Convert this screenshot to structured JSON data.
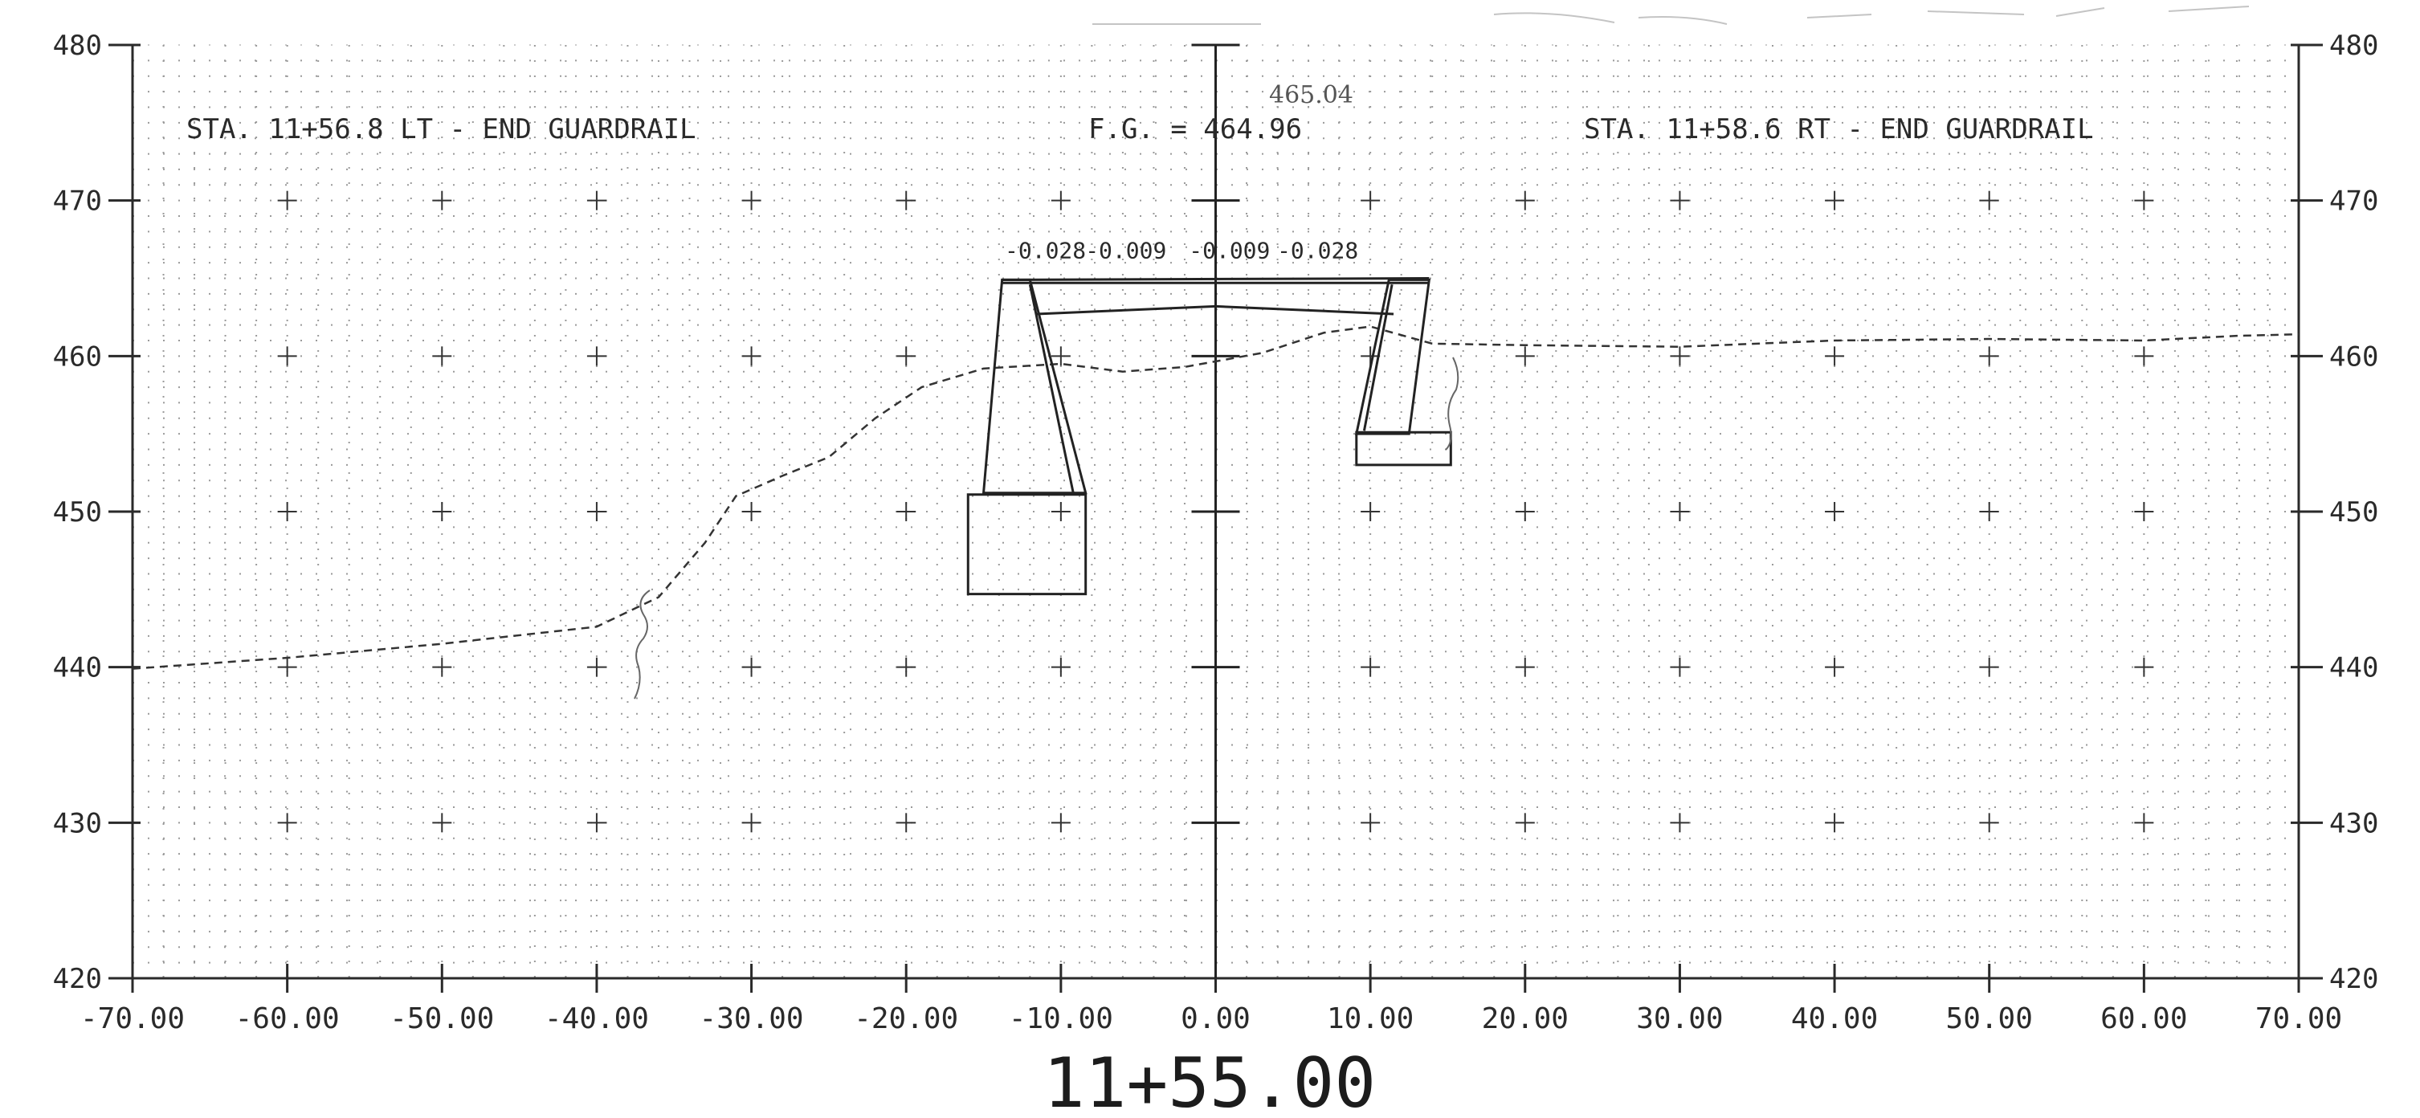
{
  "chart_data": {
    "type": "line",
    "x_ticks": [
      "-70.00",
      "-60.00",
      "-50.00",
      "-40.00",
      "-30.00",
      "-20.00",
      "-10.00",
      "0.00",
      "10.00",
      "20.00",
      "30.00",
      "40.00",
      "50.00",
      "60.00",
      "70.00"
    ],
    "y_ticks": [
      "420",
      "430",
      "440",
      "450",
      "460",
      "470",
      "480"
    ],
    "xlim": [
      -70,
      70
    ],
    "ylim": [
      420,
      480
    ],
    "grid": true,
    "ground_line": [
      [
        -70,
        439.9
      ],
      [
        -60,
        440.6
      ],
      [
        -50,
        441.5
      ],
      [
        -40,
        442.6
      ],
      [
        -36,
        444.5
      ],
      [
        -33,
        448
      ],
      [
        -31,
        451
      ],
      [
        -28,
        452.3
      ],
      [
        -25,
        453.5
      ],
      [
        -22,
        456
      ],
      [
        -19,
        458
      ],
      [
        -15,
        459.2
      ],
      [
        -10,
        459.5
      ],
      [
        -6,
        459
      ],
      [
        -2,
        459.3
      ],
      [
        3,
        460.2
      ],
      [
        7,
        461.5
      ],
      [
        10,
        461.9
      ],
      [
        14,
        460.8
      ],
      [
        20,
        460.7
      ],
      [
        30,
        460.6
      ],
      [
        40,
        461
      ],
      [
        50,
        461.1
      ],
      [
        60,
        461
      ],
      [
        66,
        461.3
      ],
      [
        70,
        461.4
      ]
    ],
    "slopes": [
      "-0.028",
      "-0.009",
      "-0.009",
      "-0.028"
    ],
    "fg_label": "F.G. = 464.96",
    "annotations": {
      "left": "STA. 11+56.8 LT - END GUARDRAIL",
      "right": "STA. 11+58.6 RT - END GUARDRAIL",
      "handwritten_top": "465.04"
    }
  },
  "station": "11+55.00",
  "colors": {
    "ink": "#2a2a2a",
    "grid": "#9a9a9a"
  }
}
